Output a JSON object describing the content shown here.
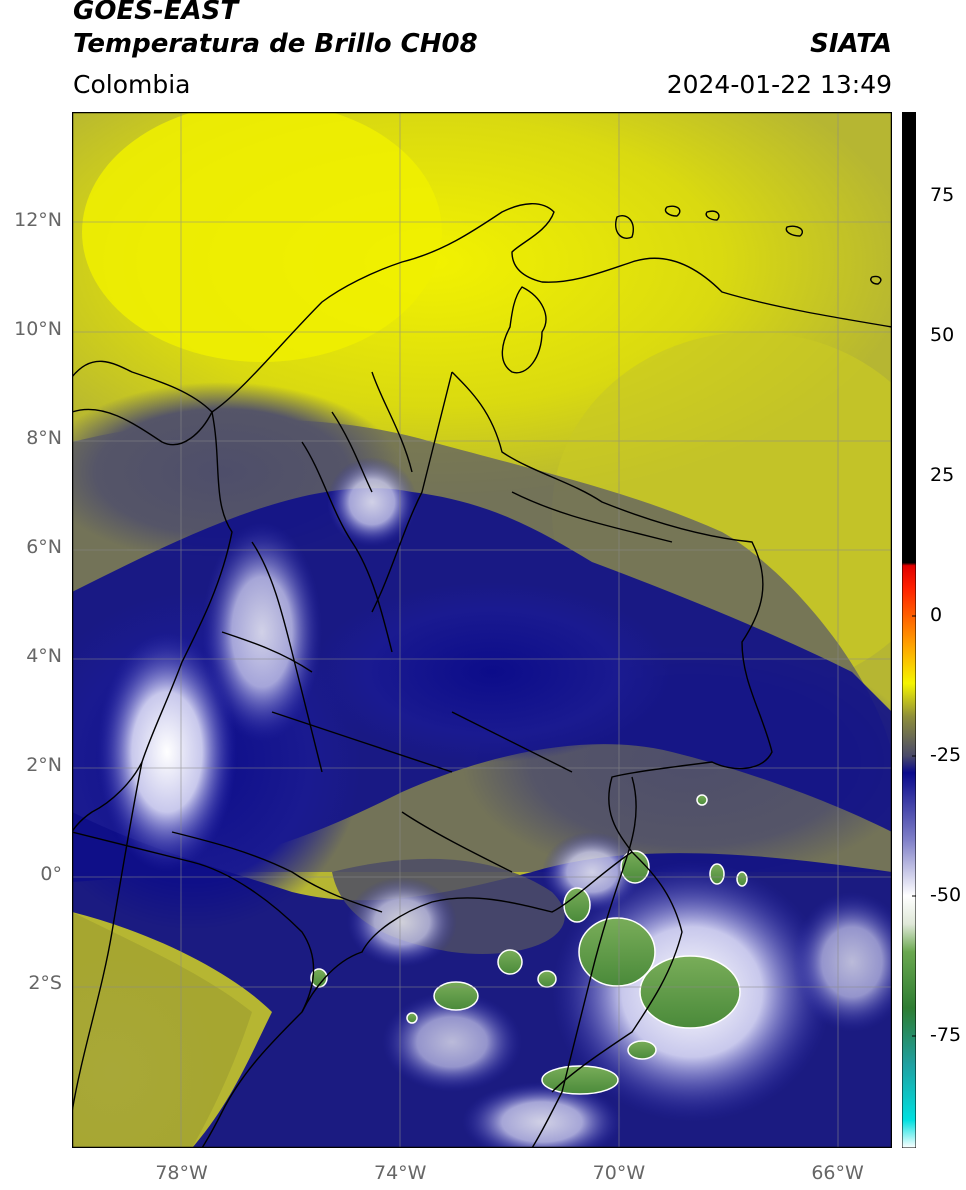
{
  "header": {
    "satellite": "GOES-EAST",
    "product": "Temperatura de Brillo CH08",
    "organization": "SIATA",
    "region": "Colombia",
    "datetime": "2024-01-22 13:49"
  },
  "map": {
    "projection": "PlateCarree",
    "lon_range": [
      -80,
      -65
    ],
    "lat_range": [
      -5,
      14
    ],
    "grid": true,
    "lat_ticks": [
      {
        "value": 12,
        "label": "12°N"
      },
      {
        "value": 10,
        "label": "10°N"
      },
      {
        "value": 8,
        "label": "8°N"
      },
      {
        "value": 6,
        "label": "6°N"
      },
      {
        "value": 4,
        "label": "4°N"
      },
      {
        "value": 2,
        "label": "2°N"
      },
      {
        "value": 0,
        "label": "0°"
      },
      {
        "value": -2,
        "label": "2°S"
      }
    ],
    "lon_ticks": [
      {
        "value": -78,
        "label": "78°W"
      },
      {
        "value": -74,
        "label": "74°W"
      },
      {
        "value": -70,
        "label": "70°W"
      },
      {
        "value": -66,
        "label": "66°W"
      }
    ]
  },
  "colorbar": {
    "min": -95,
    "max": 90,
    "ticks": [
      {
        "value": 75,
        "label": "75"
      },
      {
        "value": 50,
        "label": "50"
      },
      {
        "value": 25,
        "label": "25"
      },
      {
        "value": 0,
        "label": "0"
      },
      {
        "value": -25,
        "label": "-25"
      },
      {
        "value": -50,
        "label": "-50"
      },
      {
        "value": -75,
        "label": "-75"
      }
    ],
    "stops": [
      {
        "value": -95,
        "color": "#ffffff"
      },
      {
        "value": -90,
        "color": "#00e0e0"
      },
      {
        "value": -80,
        "color": "#20a0a0"
      },
      {
        "value": -70,
        "color": "#2e7d32"
      },
      {
        "value": -60,
        "color": "#6aa84f"
      },
      {
        "value": -55,
        "color": "#dfe8d8"
      },
      {
        "value": -50,
        "color": "#ffffff"
      },
      {
        "value": -40,
        "color": "#8080c8"
      },
      {
        "value": -28,
        "color": "#0a0a8c"
      },
      {
        "value": -25,
        "color": "#4a4a6a"
      },
      {
        "value": -18,
        "color": "#8e8e3a"
      },
      {
        "value": -12,
        "color": "#f5f500"
      },
      {
        "value": -5,
        "color": "#ffa000"
      },
      {
        "value": 5,
        "color": "#ff2000"
      },
      {
        "value": 9,
        "color": "#e00000"
      },
      {
        "value": 9.5,
        "color": "#000000"
      },
      {
        "value": 90,
        "color": "#000000"
      }
    ]
  }
}
